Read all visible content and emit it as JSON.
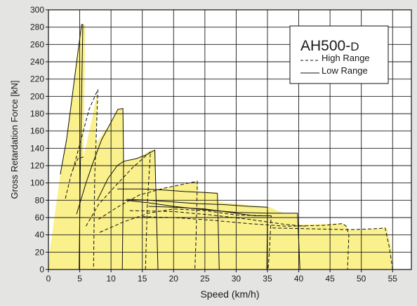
{
  "chart_data": {
    "type": "area",
    "title": "AH500-D",
    "title_main": "AH500-",
    "title_suffix": "D",
    "xlabel": "Speed (km/h)",
    "ylabel": "Gross Retardation Force [kN]",
    "xlim": [
      0,
      58
    ],
    "ylim": [
      0,
      300
    ],
    "x_ticks": [
      0,
      5,
      10,
      15,
      20,
      25,
      30,
      35,
      40,
      45,
      50,
      55
    ],
    "y_ticks": [
      0,
      20,
      40,
      60,
      80,
      100,
      120,
      140,
      160,
      180,
      200,
      220,
      240,
      260,
      280,
      300
    ],
    "grid": true,
    "legend_position": "top-right",
    "legend": [
      {
        "label": "High Range",
        "style": "dashed"
      },
      {
        "label": "Low Range",
        "style": "solid"
      }
    ],
    "colors": {
      "fill": "#faf08c",
      "line": "#111111",
      "background": "#e4e4e2",
      "plot_bg": "#ffffff"
    },
    "envelope": [
      [
        0,
        0
      ],
      [
        0.2,
        20
      ],
      [
        1.9,
        110
      ],
      [
        2.9,
        150
      ],
      [
        3.8,
        200
      ],
      [
        4.6,
        245
      ],
      [
        5.3,
        283
      ],
      [
        5.9,
        283
      ],
      [
        5.6,
        130
      ],
      [
        6.9,
        172
      ],
      [
        7.9,
        208
      ],
      [
        7.5,
        145
      ],
      [
        9.5,
        165
      ],
      [
        11.1,
        185
      ],
      [
        11.9,
        186
      ],
      [
        12.0,
        125
      ],
      [
        14.0,
        128
      ],
      [
        16.5,
        138
      ],
      [
        17.2,
        138
      ],
      [
        17.0,
        93
      ],
      [
        18.5,
        94
      ],
      [
        23.8,
        102
      ],
      [
        24.0,
        90
      ],
      [
        27.0,
        89
      ],
      [
        27.2,
        78
      ],
      [
        35.5,
        72
      ],
      [
        36.5,
        68
      ],
      [
        37.8,
        65
      ],
      [
        39.8,
        65
      ],
      [
        40.0,
        52
      ],
      [
        47.0,
        53
      ],
      [
        47.6,
        50
      ],
      [
        48.0,
        46
      ],
      [
        52.0,
        47
      ],
      [
        53.8,
        48
      ],
      [
        54.1,
        48
      ],
      [
        54.8,
        25
      ],
      [
        55.0,
        0
      ]
    ],
    "series": [
      {
        "name": "High Range",
        "style": "dashed",
        "segments": [
          [
            [
              2.7,
              82
            ],
            [
              3.7,
              112
            ],
            [
              4.7,
              128
            ],
            [
              5.6,
              130
            ]
          ],
          [
            [
              3.9,
              115
            ],
            [
              5.2,
              150
            ],
            [
              6.5,
              185
            ],
            [
              7.9,
              208
            ],
            [
              7.6,
              145
            ],
            [
              7.4,
              110
            ],
            [
              7.2,
              0
            ]
          ],
          [
            [
              6.0,
              50
            ],
            [
              8.0,
              75
            ],
            [
              10.5,
              95
            ],
            [
              13.5,
              118
            ],
            [
              16.3,
              136
            ],
            [
              15.8,
              75
            ],
            [
              15.5,
              0
            ]
          ],
          [
            [
              8.0,
              58
            ],
            [
              11.0,
              72
            ],
            [
              14.5,
              86
            ],
            [
              18.5,
              94
            ],
            [
              23.8,
              102
            ],
            [
              23.6,
              40
            ],
            [
              23.4,
              0
            ]
          ],
          [
            [
              8.2,
              43
            ],
            [
              12.0,
              55
            ],
            [
              16.0,
              65
            ],
            [
              20.0,
              70
            ],
            [
              25.0,
              68
            ],
            [
              30.0,
              63
            ],
            [
              34.5,
              62
            ],
            [
              35.6,
              62
            ],
            [
              35.3,
              20
            ],
            [
              35.1,
              0
            ]
          ],
          [
            [
              13.0,
              68
            ],
            [
              20.0,
              67
            ],
            [
              26.0,
              63
            ],
            [
              32.0,
              58
            ],
            [
              38.0,
              52
            ],
            [
              41.0,
              50
            ]
          ],
          [
            [
              15.0,
              61
            ],
            [
              20.0,
              60
            ],
            [
              26.0,
              57
            ],
            [
              32.0,
              53
            ],
            [
              38.0,
              50
            ],
            [
              44.0,
              51
            ],
            [
              47.0,
              53
            ],
            [
              47.6,
              50
            ],
            [
              48.0,
              40
            ],
            [
              47.8,
              0
            ]
          ],
          [
            [
              35.8,
              48
            ],
            [
              42.0,
              47
            ],
            [
              48.0,
              46
            ],
            [
              52.0,
              47
            ],
            [
              53.8,
              48
            ],
            [
              54.5,
              25
            ],
            [
              55.0,
              0
            ]
          ]
        ]
      },
      {
        "name": "Low Range",
        "style": "solid",
        "segments": [
          [
            [
              1.9,
              110
            ],
            [
              2.9,
              150
            ],
            [
              3.8,
              200
            ],
            [
              4.6,
              245
            ],
            [
              5.3,
              283
            ],
            [
              5.5,
              283
            ],
            [
              5.1,
              120
            ],
            [
              4.9,
              0
            ]
          ],
          [
            [
              4.5,
              64
            ],
            [
              6.0,
              100
            ],
            [
              7.2,
              125
            ],
            [
              8.5,
              150
            ],
            [
              10.0,
              170
            ],
            [
              11.1,
              185
            ],
            [
              11.9,
              186
            ],
            [
              12.0,
              125
            ],
            [
              11.8,
              0
            ]
          ],
          [
            [
              7.8,
              80
            ],
            [
              9.5,
              105
            ],
            [
              11.0,
              120
            ],
            [
              12.0,
              125
            ],
            [
              14.0,
              128
            ],
            [
              15.5,
              132
            ],
            [
              17.0,
              138
            ],
            [
              17.5,
              0
            ]
          ],
          [
            [
              11.0,
              93
            ],
            [
              15.0,
              93
            ],
            [
              18.0,
              92
            ],
            [
              22.0,
              90
            ],
            [
              25.0,
              89
            ],
            [
              27.0,
              88
            ],
            [
              27.3,
              0
            ]
          ],
          [
            [
              12.5,
              81
            ],
            [
              16.0,
              80
            ],
            [
              20.0,
              78
            ],
            [
              24.0,
              76
            ],
            [
              28.0,
              75
            ],
            [
              32.0,
              73
            ],
            [
              35.0,
              72
            ],
            [
              34.9,
              0
            ]
          ],
          [
            [
              12.3,
              80
            ],
            [
              16.0,
              77
            ],
            [
              20.0,
              73
            ],
            [
              25.0,
              69
            ],
            [
              30.0,
              66
            ],
            [
              35.0,
              65
            ],
            [
              37.8,
              65
            ],
            [
              39.8,
              65
            ],
            [
              40.2,
              0
            ]
          ],
          [
            [
              16.0,
              73
            ],
            [
              20.0,
              72
            ],
            [
              25.0,
              70
            ],
            [
              28.0,
              67
            ],
            [
              31.0,
              64
            ],
            [
              33.0,
              62
            ],
            [
              35.6,
              62
            ]
          ]
        ]
      }
    ]
  }
}
